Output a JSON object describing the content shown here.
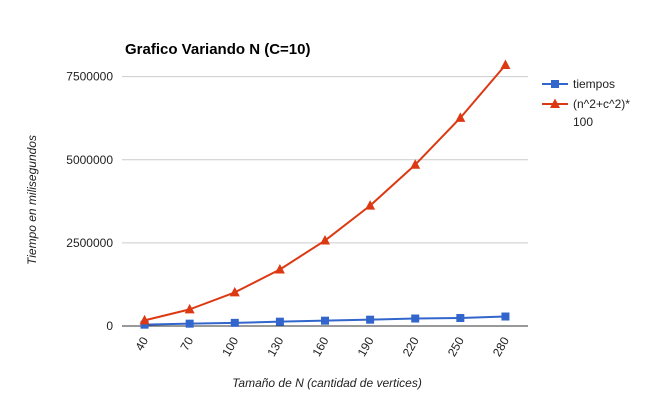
{
  "chart_data": {
    "type": "line",
    "title": "Grafico Variando N (C=10)",
    "xlabel": "Tamaño de N (cantidad de vertices)",
    "ylabel": "Tiempo en milisegundos",
    "categories": [
      "40",
      "70",
      "100",
      "130",
      "160",
      "190",
      "220",
      "250",
      "280"
    ],
    "ylim": [
      0,
      8000000
    ],
    "yticks": [
      0,
      2500000,
      5000000,
      7500000
    ],
    "ytick_labels": [
      "0",
      "2500000",
      "5000000",
      "7500000"
    ],
    "grid": true,
    "legend_position": "right",
    "series": [
      {
        "name": "tiempos",
        "color": "#3366cc",
        "marker": "square",
        "values": [
          40000,
          70000,
          95000,
          130000,
          160000,
          190000,
          225000,
          240000,
          285000
        ]
      },
      {
        "name": "(n^2+c^2)*100",
        "legend_lines": [
          "(n^2+c^2)*",
          "100"
        ],
        "color": "#dc3912",
        "marker": "triangle",
        "values": [
          170000,
          500000,
          1010000,
          1700000,
          2570000,
          3620000,
          4850000,
          6260000,
          7850000
        ]
      }
    ]
  }
}
